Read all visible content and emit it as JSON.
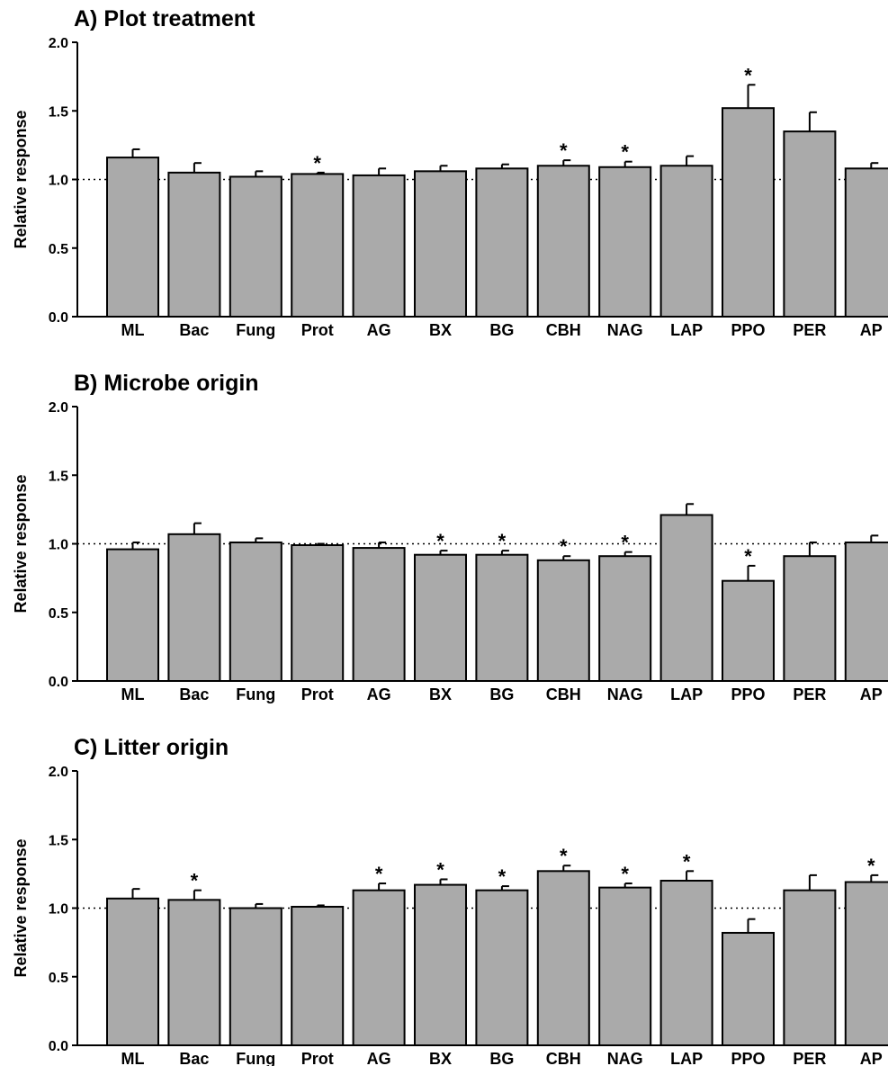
{
  "chart_data": [
    {
      "type": "bar",
      "title": "A) Plot treatment",
      "ylabel": "Relative response",
      "ylim": [
        0,
        2.0
      ],
      "yticks": [
        "0.0",
        "0.5",
        "1.0",
        "1.5",
        "2.0"
      ],
      "reference_line": 1.0,
      "categories": [
        "ML",
        "Bac",
        "Fung",
        "Prot",
        "AG",
        "BX",
        "BG",
        "CBH",
        "NAG",
        "LAP",
        "PPO",
        "PER",
        "AP"
      ],
      "values": [
        1.16,
        1.05,
        1.02,
        1.04,
        1.03,
        1.06,
        1.08,
        1.1,
        1.09,
        1.1,
        1.52,
        1.35,
        1.08
      ],
      "errors": [
        0.06,
        0.07,
        0.04,
        0.01,
        0.05,
        0.04,
        0.03,
        0.04,
        0.04,
        0.07,
        0.17,
        0.14,
        0.04
      ],
      "significant": [
        false,
        false,
        false,
        true,
        false,
        false,
        false,
        true,
        true,
        false,
        true,
        false,
        false
      ]
    },
    {
      "type": "bar",
      "title": "B) Microbe origin",
      "ylabel": "Relative response",
      "ylim": [
        0,
        2.0
      ],
      "yticks": [
        "0.0",
        "0.5",
        "1.0",
        "1.5",
        "2.0"
      ],
      "reference_line": 1.0,
      "categories": [
        "ML",
        "Bac",
        "Fung",
        "Prot",
        "AG",
        "BX",
        "BG",
        "CBH",
        "NAG",
        "LAP",
        "PPO",
        "PER",
        "AP"
      ],
      "values": [
        0.96,
        1.07,
        1.01,
        0.99,
        0.97,
        0.92,
        0.92,
        0.88,
        0.91,
        1.21,
        0.73,
        0.91,
        1.01
      ],
      "errors": [
        0.05,
        0.08,
        0.03,
        0.01,
        0.04,
        0.03,
        0.03,
        0.03,
        0.03,
        0.08,
        0.11,
        0.1,
        0.05
      ],
      "significant": [
        false,
        false,
        false,
        false,
        false,
        true,
        true,
        true,
        true,
        false,
        true,
        false,
        false
      ]
    },
    {
      "type": "bar",
      "title": "C) Litter origin",
      "ylabel": "Relative response",
      "ylim": [
        0,
        2.0
      ],
      "yticks": [
        "0.0",
        "0.5",
        "1.0",
        "1.5",
        "2.0"
      ],
      "reference_line": 1.0,
      "categories": [
        "ML",
        "Bac",
        "Fung",
        "Prot",
        "AG",
        "BX",
        "BG",
        "CBH",
        "NAG",
        "LAP",
        "PPO",
        "PER",
        "AP"
      ],
      "values": [
        1.07,
        1.06,
        1.0,
        1.01,
        1.13,
        1.17,
        1.13,
        1.27,
        1.15,
        1.2,
        0.82,
        1.13,
        1.19
      ],
      "errors": [
        0.07,
        0.07,
        0.03,
        0.01,
        0.05,
        0.04,
        0.03,
        0.04,
        0.03,
        0.07,
        0.1,
        0.11,
        0.05
      ],
      "significant": [
        false,
        true,
        false,
        false,
        true,
        true,
        true,
        true,
        true,
        true,
        false,
        false,
        true
      ]
    }
  ],
  "significance_marker": "*",
  "colors": {
    "bar_fill": "#aaaaaa",
    "bar_stroke": "#000000"
  }
}
